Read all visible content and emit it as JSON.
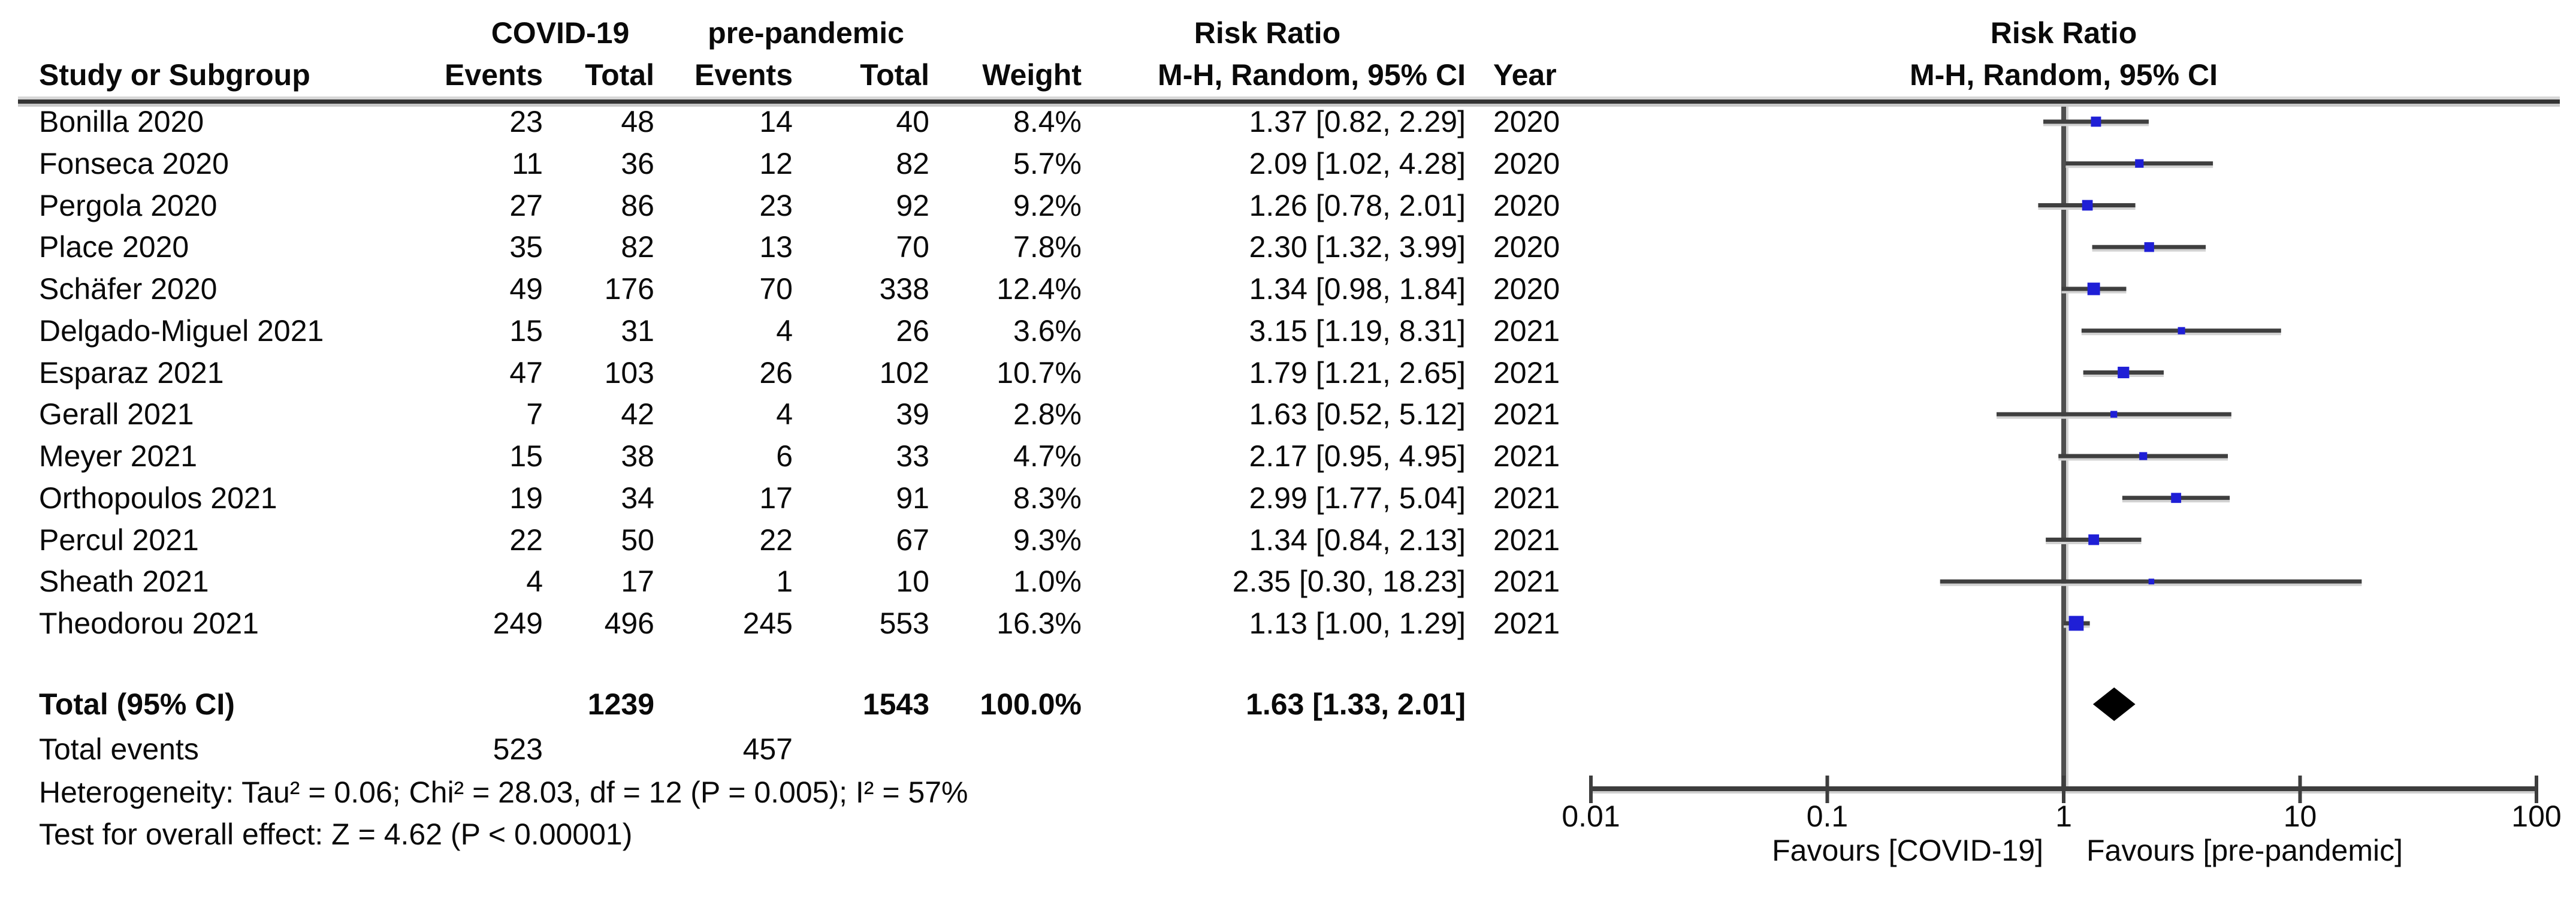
{
  "accent_color": "#1f1fd6",
  "line_color": "#3f3f3f",
  "header": {
    "group1": "COVID-19",
    "group2": "pre-pandemic",
    "col_study": "Study or Subgroup",
    "col_events": "Events",
    "col_total": "Total",
    "col_events2": "Events",
    "col_total2": "Total",
    "col_weight": "Weight",
    "rr_title_left": "Risk Ratio",
    "rr_sub_left": "M-H, Random, 95% CI",
    "col_year": "Year",
    "rr_title_right": "Risk Ratio",
    "rr_sub_right": "M-H, Random, 95% CI"
  },
  "chart_data": {
    "type": "forest",
    "x_scale": "log10",
    "x_range": [
      0.01,
      100
    ],
    "x_ticks": [
      "0.01",
      "0.1",
      "1",
      "10",
      "100"
    ],
    "favours_left": "Favours [COVID-19]",
    "favours_right": "Favours [pre-pandemic]",
    "studies": [
      {
        "name": "Bonilla 2020",
        "e1": "23",
        "t1": "48",
        "e2": "14",
        "t2": "40",
        "weight": "8.4%",
        "w": 8.4,
        "rr": 1.37,
        "lo": 0.82,
        "hi": 2.29,
        "ci_text": "1.37 [0.82, 2.29]",
        "year": "2020"
      },
      {
        "name": "Fonseca 2020",
        "e1": "11",
        "t1": "36",
        "e2": "12",
        "t2": "82",
        "weight": "5.7%",
        "w": 5.7,
        "rr": 2.09,
        "lo": 1.02,
        "hi": 4.28,
        "ci_text": "2.09 [1.02, 4.28]",
        "year": "2020"
      },
      {
        "name": "Pergola 2020",
        "e1": "27",
        "t1": "86",
        "e2": "23",
        "t2": "92",
        "weight": "9.2%",
        "w": 9.2,
        "rr": 1.26,
        "lo": 0.78,
        "hi": 2.01,
        "ci_text": "1.26 [0.78, 2.01]",
        "year": "2020"
      },
      {
        "name": "Place 2020",
        "e1": "35",
        "t1": "82",
        "e2": "13",
        "t2": "70",
        "weight": "7.8%",
        "w": 7.8,
        "rr": 2.3,
        "lo": 1.32,
        "hi": 3.99,
        "ci_text": "2.30 [1.32, 3.99]",
        "year": "2020"
      },
      {
        "name": "Schäfer 2020",
        "e1": "49",
        "t1": "176",
        "e2": "70",
        "t2": "338",
        "weight": "12.4%",
        "w": 12.4,
        "rr": 1.34,
        "lo": 0.98,
        "hi": 1.84,
        "ci_text": "1.34 [0.98, 1.84]",
        "year": "2020"
      },
      {
        "name": "Delgado-Miguel 2021",
        "e1": "15",
        "t1": "31",
        "e2": "4",
        "t2": "26",
        "weight": "3.6%",
        "w": 3.6,
        "rr": 3.15,
        "lo": 1.19,
        "hi": 8.31,
        "ci_text": "3.15 [1.19, 8.31]",
        "year": "2021"
      },
      {
        "name": "Esparaz 2021",
        "e1": "47",
        "t1": "103",
        "e2": "26",
        "t2": "102",
        "weight": "10.7%",
        "w": 10.7,
        "rr": 1.79,
        "lo": 1.21,
        "hi": 2.65,
        "ci_text": "1.79 [1.21, 2.65]",
        "year": "2021"
      },
      {
        "name": "Gerall 2021",
        "e1": "7",
        "t1": "42",
        "e2": "4",
        "t2": "39",
        "weight": "2.8%",
        "w": 2.8,
        "rr": 1.63,
        "lo": 0.52,
        "hi": 5.12,
        "ci_text": "1.63 [0.52, 5.12]",
        "year": "2021"
      },
      {
        "name": "Meyer 2021",
        "e1": "15",
        "t1": "38",
        "e2": "6",
        "t2": "33",
        "weight": "4.7%",
        "w": 4.7,
        "rr": 2.17,
        "lo": 0.95,
        "hi": 4.95,
        "ci_text": "2.17 [0.95, 4.95]",
        "year": "2021"
      },
      {
        "name": "Orthopoulos 2021",
        "e1": "19",
        "t1": "34",
        "e2": "17",
        "t2": "91",
        "weight": "8.3%",
        "w": 8.3,
        "rr": 2.99,
        "lo": 1.77,
        "hi": 5.04,
        "ci_text": "2.99 [1.77, 5.04]",
        "year": "2021"
      },
      {
        "name": "Percul 2021",
        "e1": "22",
        "t1": "50",
        "e2": "22",
        "t2": "67",
        "weight": "9.3%",
        "w": 9.3,
        "rr": 1.34,
        "lo": 0.84,
        "hi": 2.13,
        "ci_text": "1.34 [0.84, 2.13]",
        "year": "2021"
      },
      {
        "name": "Sheath 2021",
        "e1": "4",
        "t1": "17",
        "e2": "1",
        "t2": "10",
        "weight": "1.0%",
        "w": 1.0,
        "rr": 2.35,
        "lo": 0.3,
        "hi": 18.23,
        "ci_text": "2.35 [0.30, 18.23]",
        "year": "2021"
      },
      {
        "name": "Theodorou 2021",
        "e1": "249",
        "t1": "496",
        "e2": "245",
        "t2": "553",
        "weight": "16.3%",
        "w": 16.3,
        "rr": 1.13,
        "lo": 1.0,
        "hi": 1.29,
        "ci_text": "1.13 [1.00, 1.29]",
        "year": "2021"
      }
    ],
    "total": {
      "label": "Total (95% CI)",
      "t1": "1239",
      "t2": "1543",
      "weight": "100.0%",
      "rr": 1.63,
      "lo": 1.33,
      "hi": 2.01,
      "ci_text": "1.63 [1.33, 2.01]"
    },
    "total_events": {
      "label": "Total events",
      "e1": "523",
      "e2": "457"
    },
    "heterogeneity": "Heterogeneity: Tau² = 0.06; Chi² = 28.03, df = 12 (P = 0.005); I² = 57%",
    "overall_effect": "Test for overall effect: Z = 4.62 (P < 0.00001)"
  }
}
